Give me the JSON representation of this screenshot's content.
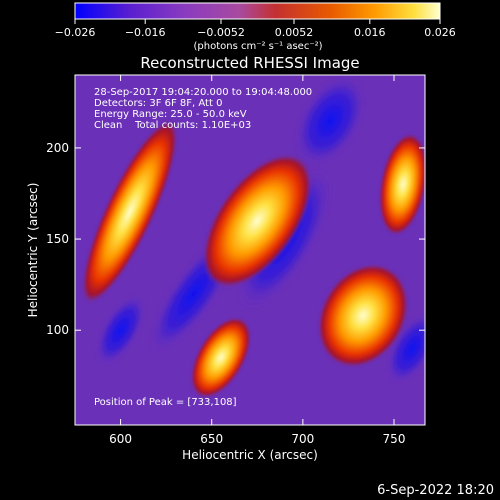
{
  "chart_data": {
    "type": "heatmap",
    "title": "Reconstructed RHESSI Image",
    "xlabel": "Heliocentric X (arcsec)",
    "ylabel": "Heliocentric Y (arcsec)",
    "xlim": [
      575,
      767
    ],
    "ylim": [
      48,
      240
    ],
    "x_ticks": [
      600,
      650,
      700,
      750
    ],
    "y_ticks": [
      100,
      150,
      200
    ],
    "colorbar": {
      "min": -0.026,
      "max": 0.026,
      "tick_labels": [
        "−0.026",
        "−0.016",
        "−0.0052",
        "0.0052",
        "0.016",
        "0.026"
      ],
      "unit_label": "(photons cm⁻² s⁻¹ asec⁻²)",
      "colors": [
        "#0000ff",
        "#5a1fd0",
        "#8a3bc0",
        "#a84aa0",
        "#c43030",
        "#e85a00",
        "#ff9a00",
        "#ffe040",
        "#ffffd0"
      ]
    },
    "annotations": {
      "time_range": "28-Sep-2017 19:04:20.000 to 19:04:48.000",
      "detectors": "Detectors: 3F 6F 8F, Att 0",
      "energy_range": "Energy Range: 25.0 - 50.0 keV",
      "clean_counts": "Clean    Total counts: 1.10E+03",
      "peak_position": "Position of Peak = [733,108]"
    },
    "sources": [
      {
        "x": 675,
        "y": 160,
        "peak": 0.025
      },
      {
        "x": 733,
        "y": 108,
        "peak": 0.026
      },
      {
        "x": 755,
        "y": 180,
        "peak": 0.02
      },
      {
        "x": 605,
        "y": 165,
        "peak": 0.018
      },
      {
        "x": 655,
        "y": 85,
        "peak": 0.015
      }
    ]
  },
  "footer": {
    "date": "6-Sep-2022 18:20"
  }
}
